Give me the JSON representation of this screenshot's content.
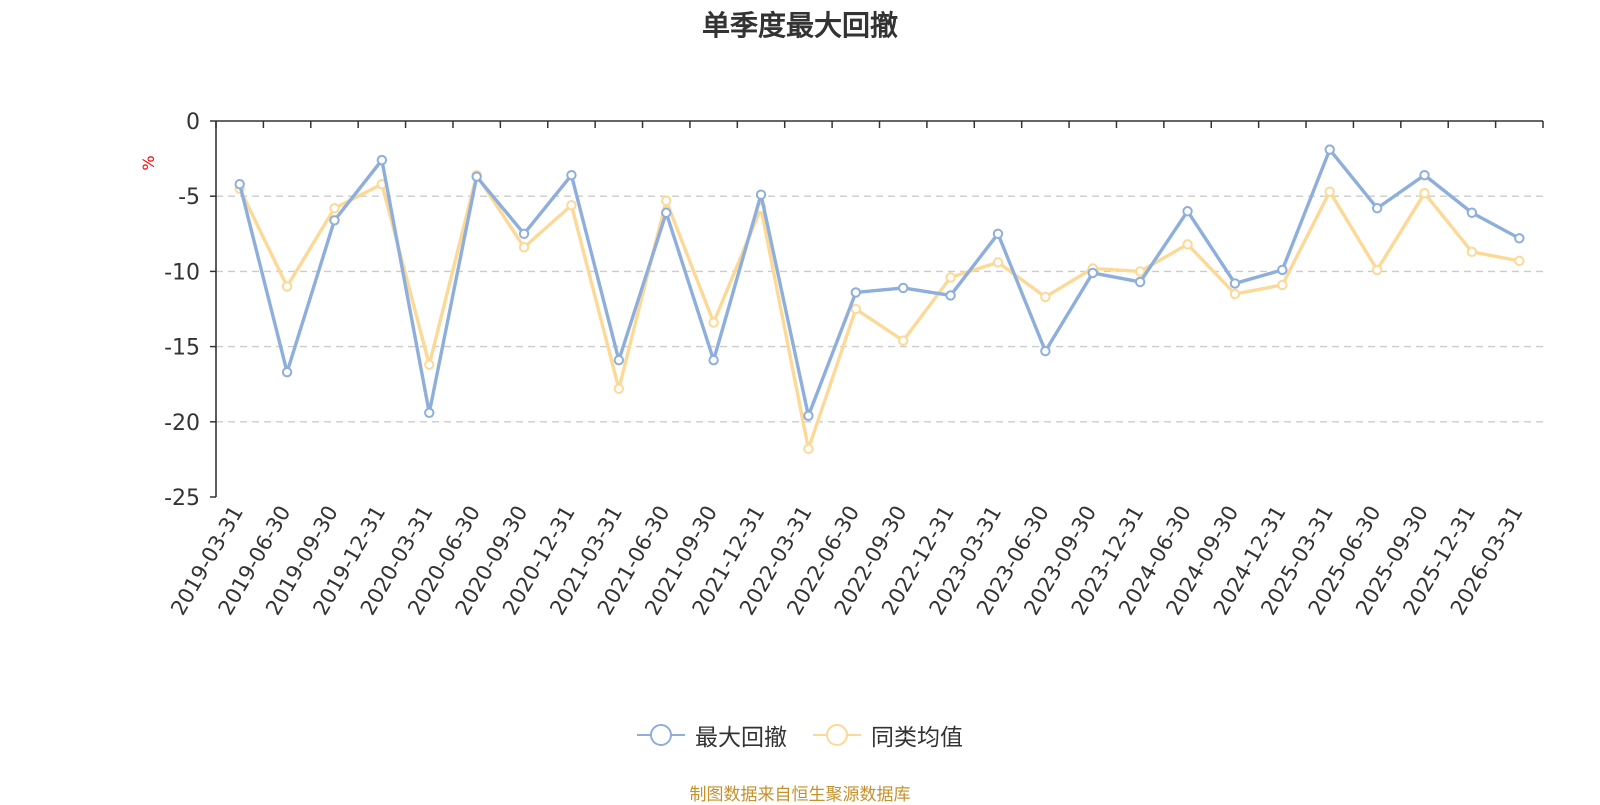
{
  "title": "单季度最大回撤",
  "source_note": "制图数据来自恒生聚源数据库",
  "colors": {
    "series_1": "#8eaedc",
    "series_2": "#fdd998",
    "source_note": "#c8902a",
    "unit": "#ff0000",
    "text": "#333333"
  },
  "chart_data": {
    "type": "line",
    "title": "单季度最大回撤",
    "ylabel": "%",
    "ylim": [
      -25,
      0
    ],
    "yticks": [
      0,
      -5,
      -10,
      -15,
      -20,
      -25
    ],
    "grid": true,
    "legend_position": "bottom",
    "x": [
      "2019-03-31",
      "2019-06-30",
      "2019-09-30",
      "2019-12-31",
      "2020-03-31",
      "2020-06-30",
      "2020-09-30",
      "2020-12-31",
      "2021-03-31",
      "2021-06-30",
      "2021-09-30",
      "2021-12-31",
      "2022-03-31",
      "2022-06-30",
      "2022-09-30",
      "2022-12-31",
      "2023-03-31",
      "2023-06-30",
      "2023-09-30",
      "2023-12-31",
      "2024-06-30",
      "2024-09-30",
      "2024-12-31",
      "2025-03-31",
      "2025-06-30",
      "2025-09-30",
      "2025-12-31",
      "2026-03-31"
    ],
    "series": [
      {
        "name": "最大回撤",
        "values": [
          -4.2,
          -16.7,
          -6.6,
          -2.6,
          -19.4,
          -3.7,
          -7.5,
          -3.6,
          -15.9,
          -6.1,
          -15.9,
          -4.9,
          -19.6,
          -11.4,
          -11.1,
          -11.6,
          -7.5,
          -15.3,
          -10.1,
          -10.7,
          -6.0,
          -10.8,
          -9.9,
          -1.9,
          -5.8,
          -3.6,
          -6.1,
          -7.8
        ]
      },
      {
        "name": "同类均值",
        "values": [
          -4.5,
          -11.0,
          -5.8,
          -4.2,
          -16.2,
          -3.6,
          -8.4,
          -5.6,
          -17.8,
          -5.3,
          -13.4,
          -5.8,
          -21.8,
          -12.5,
          -14.6,
          -10.4,
          -9.4,
          -11.7,
          -9.8,
          -10.0,
          -8.2,
          -11.5,
          -10.9,
          -4.7,
          -9.9,
          -4.8,
          -8.7,
          -9.3
        ]
      }
    ]
  }
}
